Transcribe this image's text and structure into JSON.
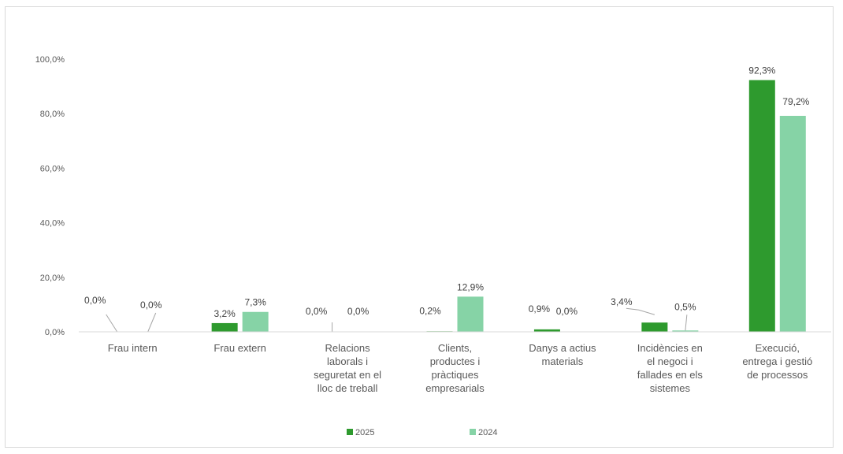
{
  "chart_data": {
    "type": "bar",
    "title": "",
    "xlabel": "",
    "ylabel": "",
    "ylim": [
      0,
      100
    ],
    "yticks": [
      "0,0%",
      "20,0%",
      "40,0%",
      "60,0%",
      "80,0%",
      "100,0%"
    ],
    "categories": [
      [
        "Frau intern"
      ],
      [
        "Frau extern"
      ],
      [
        "Relacions",
        "laborals i",
        "seguretat en el",
        "lloc de treball"
      ],
      [
        "Clients,",
        "productes i",
        "pràctiques",
        "empresarials"
      ],
      [
        "Danys a actius",
        "materials"
      ],
      [
        "Incidències en",
        "el negoci i",
        "fallades en els",
        "sistemes"
      ],
      [
        "Execució,",
        "entrega i gestió",
        "de processos"
      ]
    ],
    "series": [
      {
        "name": "2025",
        "color": "#2e9a2e",
        "values": [
          0.0,
          3.2,
          0.0,
          0.2,
          0.9,
          3.4,
          92.3
        ],
        "labels": [
          "0,0%",
          "3,2%",
          "0,0%",
          "0,2%",
          "0,9%",
          "3,4%",
          "92,3%"
        ]
      },
      {
        "name": "2024",
        "color": "#86d3a6",
        "values": [
          0.0,
          7.3,
          0.0,
          12.9,
          0.0,
          0.5,
          79.2
        ],
        "labels": [
          "0,0%",
          "7,3%",
          "0,0%",
          "12,9%",
          "0,0%",
          "0,5%",
          "79,2%"
        ]
      }
    ],
    "grid": false,
    "legend_position": "bottom"
  }
}
